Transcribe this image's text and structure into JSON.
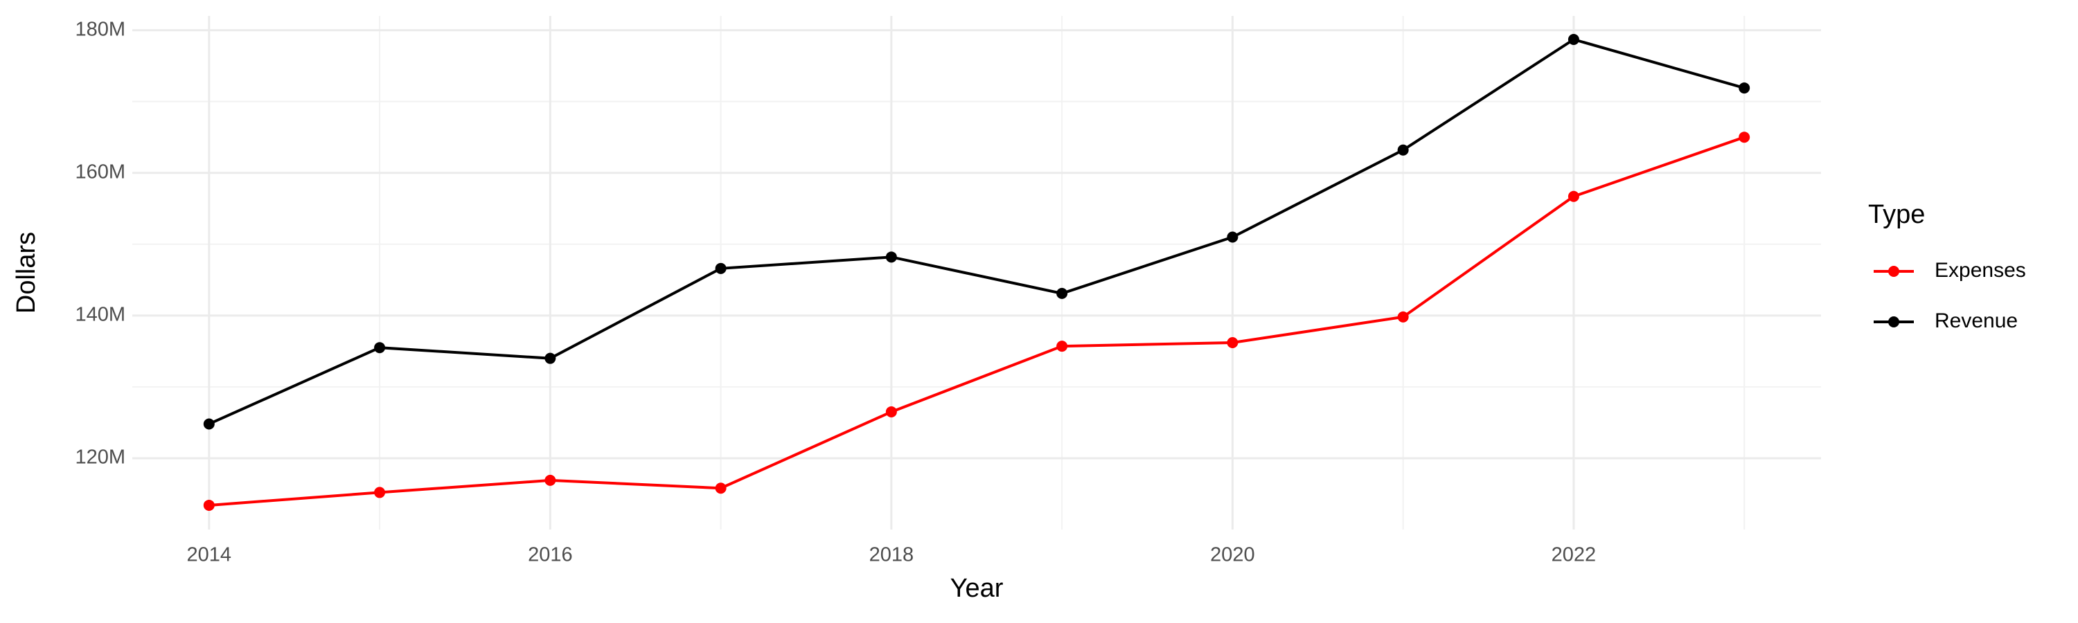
{
  "chart_data": {
    "type": "line",
    "x_label": "Year",
    "y_label": "Dollars",
    "legend_title": "Type",
    "x": [
      2014,
      2015,
      2016,
      2017,
      2018,
      2019,
      2020,
      2021,
      2022,
      2023
    ],
    "series": [
      {
        "name": "Expenses",
        "color": "#ff0000",
        "values": [
          113400000,
          115200000,
          116900000,
          115800000,
          126500000,
          135700000,
          136200000,
          139800000,
          156700000,
          165000000
        ]
      },
      {
        "name": "Revenue",
        "color": "#000000",
        "values": [
          124800000,
          135500000,
          134000000,
          146600000,
          148200000,
          143100000,
          151000000,
          163200000,
          178700000,
          171900000
        ]
      }
    ],
    "xlim": [
      2013.55,
      2023.45
    ],
    "xticks": [
      2014,
      2016,
      2018,
      2020,
      2022
    ],
    "ylim": [
      110000000,
      182000000
    ],
    "yticks": [
      {
        "value": 120000000,
        "label": "120M"
      },
      {
        "value": 140000000,
        "label": "140M"
      },
      {
        "value": 160000000,
        "label": "160M"
      },
      {
        "value": 180000000,
        "label": "180M"
      }
    ],
    "grid": true,
    "legend_position": "right"
  }
}
